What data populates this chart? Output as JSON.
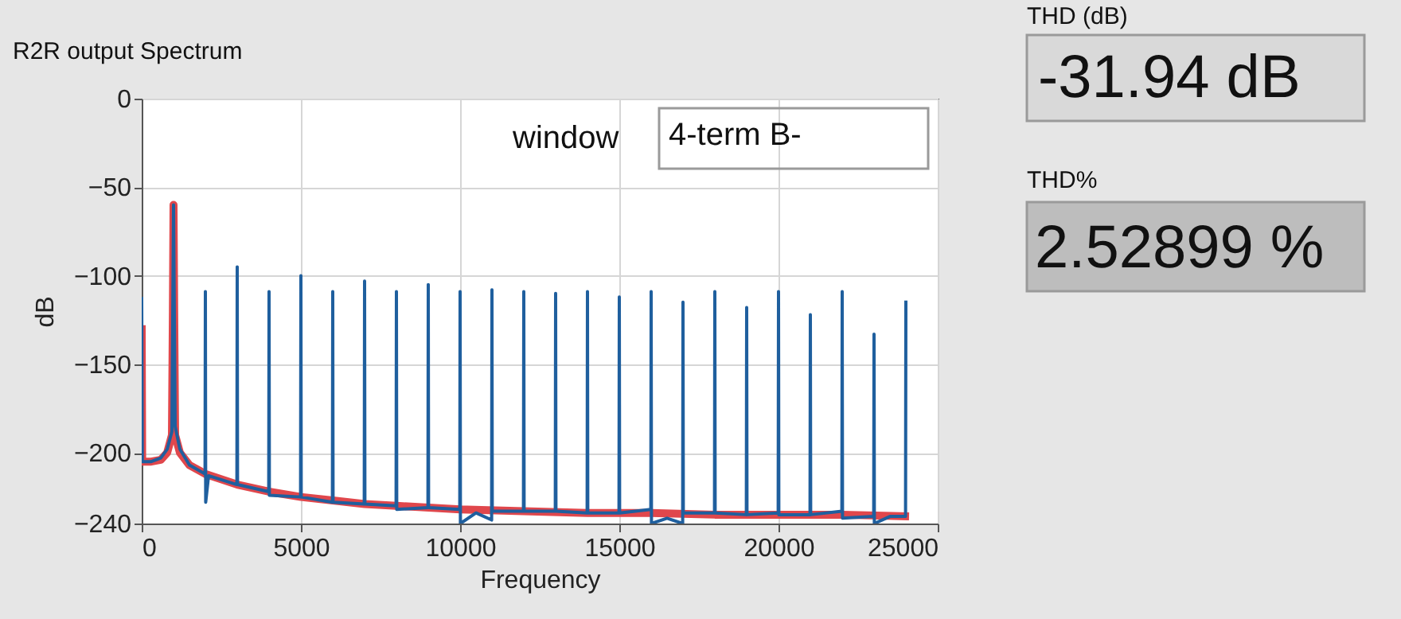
{
  "chart_data": {
    "type": "line",
    "title": "R2R output Spectrum",
    "xlabel": "Frequency",
    "ylabel": "dB",
    "xlim": [
      0,
      25000
    ],
    "xticks": [
      0,
      5000,
      10000,
      15000,
      20000,
      25000
    ],
    "ylim": [
      -240,
      0
    ],
    "yticks": [
      0,
      -50,
      -100,
      -150,
      -200,
      -240
    ],
    "grid": true,
    "marker": "none",
    "line_style": "solid",
    "annotations": [
      "window",
      "4-term B-",
      "THD (dB)",
      "-31.94 dB",
      "THD%",
      "2.52899 %"
    ],
    "series": [
      {
        "color": "#e0474c",
        "x": [
          0,
          15,
          300,
          600,
          800,
          950,
          980,
          1000,
          1020,
          1050,
          1200,
          1500,
          2000,
          3000,
          4000,
          5000,
          6000,
          7000,
          8000,
          10000,
          12000,
          14000,
          16000,
          18000,
          20000,
          22000,
          24100
        ],
        "values": [
          -128,
          -205,
          -205,
          -204,
          -200,
          -190,
          -120,
          -60,
          -120,
          -190,
          -200,
          -207,
          -212,
          -218,
          -222,
          -225,
          -227,
          -229,
          -230,
          -232,
          -233,
          -234,
          -234,
          -235,
          -235,
          -235,
          -236
        ]
      },
      {
        "color": "#1f5f9e",
        "x": [
          0,
          20,
          300,
          600,
          800,
          950,
          1000,
          1050,
          1200,
          1500,
          1990,
          2000,
          2010,
          2100,
          2990,
          3000,
          3010,
          3990,
          4000,
          4010,
          4990,
          5000,
          5010,
          5990,
          6000,
          6010,
          6990,
          7000,
          7010,
          7990,
          8000,
          8010,
          8990,
          9000,
          9010,
          9990,
          10000,
          10010,
          10500,
          10990,
          11000,
          11010,
          11990,
          12000,
          12010,
          12990,
          13000,
          13010,
          13990,
          14000,
          14010,
          14990,
          15000,
          15010,
          15990,
          16000,
          16010,
          16500,
          16990,
          17000,
          17010,
          17990,
          18000,
          18010,
          18990,
          19000,
          19010,
          19990,
          20000,
          20010,
          20990,
          21000,
          21010,
          21990,
          22000,
          22010,
          22990,
          23000,
          23010,
          23500,
          23990,
          24000
        ],
        "values": [
          -112,
          -205,
          -205,
          -203,
          -198,
          -188,
          -60,
          -185,
          -198,
          -207,
          -212,
          -109,
          -228,
          -213,
          -218,
          -95,
          -218,
          -222,
          -109,
          -224,
          -225,
          -100,
          -225,
          -228,
          -109,
          -228,
          -229,
          -103,
          -229,
          -230,
          -109,
          -232,
          -231,
          -105,
          -231,
          -232,
          -109,
          -240,
          -234,
          -238,
          -108,
          -233,
          -233,
          -109,
          -233,
          -233,
          -110,
          -233,
          -234,
          -109,
          -234,
          -234,
          -112,
          -234,
          -232,
          -109,
          -240,
          -237,
          -240,
          -115,
          -234,
          -234,
          -109,
          -234,
          -235,
          -118,
          -235,
          -234,
          -109,
          -235,
          -235,
          -122,
          -235,
          -233,
          -109,
          -237,
          -236,
          -133,
          -240,
          -236,
          -236,
          -114
        ]
      }
    ]
  }
}
